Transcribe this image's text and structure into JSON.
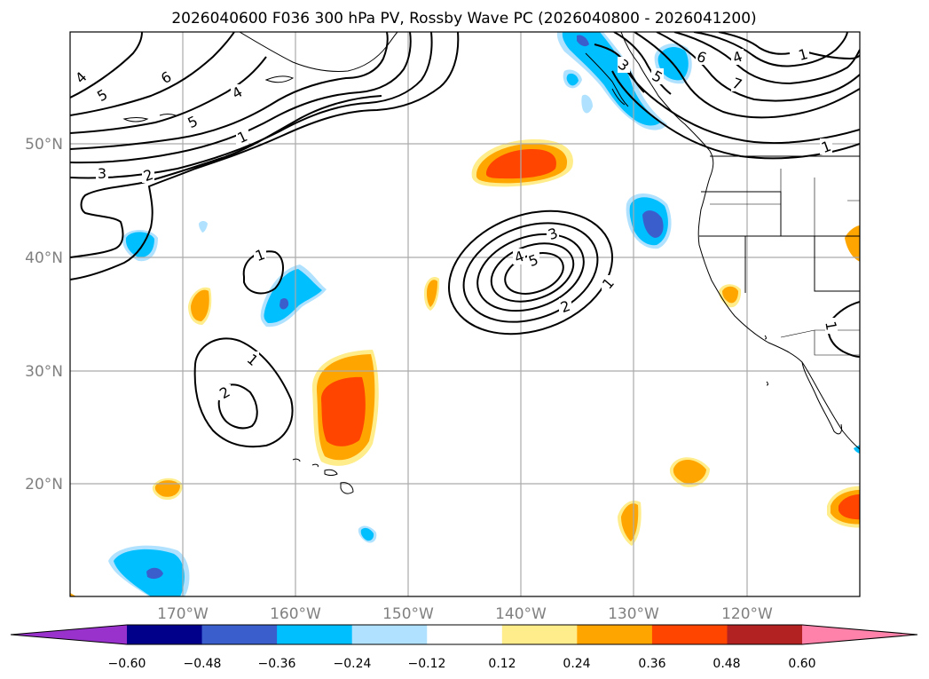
{
  "title": "2026040600 F036 300 hPa PV, Rossby Wave PC (2026040800 - 2026041200)",
  "map": {
    "lon_labels": [
      "170°W",
      "160°W",
      "150°W",
      "140°W",
      "130°W",
      "120°W"
    ],
    "lat_labels": [
      "50°N",
      "40°N",
      "30°N",
      "20°N"
    ]
  },
  "colorbar": {
    "tick_labels": [
      "−0.60",
      "−0.48",
      "−0.36",
      "−0.24",
      "−0.12",
      "0.12",
      "0.24",
      "0.36",
      "0.48",
      "0.60"
    ],
    "colors": [
      "#9932CC",
      "#00008B",
      "#3A5FCD",
      "#00BFFF",
      "#B0E2FF",
      "#FFFFFF",
      "#FFEC8B",
      "#FFA500",
      "#FF4500",
      "#B22222",
      "#FF82AB"
    ]
  },
  "contour_labels": [
    "4",
    "5",
    "6",
    "5",
    "4",
    "1",
    "3",
    "2",
    "6",
    "4",
    "1",
    "5",
    "3",
    "7",
    "1",
    "1",
    "3",
    "4",
    "5",
    "2",
    "1",
    "1",
    "1",
    "2",
    "1"
  ]
}
